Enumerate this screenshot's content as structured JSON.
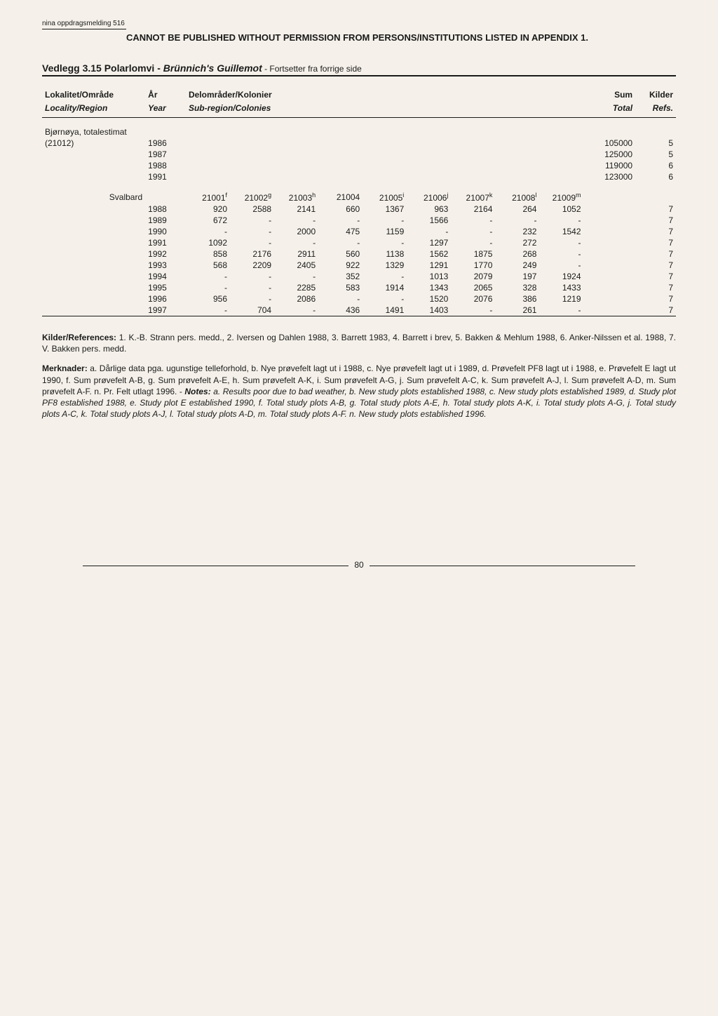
{
  "series_label": "nina oppdragsmelding 516",
  "banner": "CANNOT BE PUBLISHED WITHOUT PERMISSION FROM PERSONS/INSTITUTIONS LISTED IN APPENDIX 1.",
  "section": {
    "number": "Vedlegg 3.15",
    "title_plain": "Polarlomvi -",
    "title_italic": "Brünnich's Guillemot",
    "cont": " - Fortsetter fra forrige side"
  },
  "headers": {
    "row1": [
      "Lokalitet/Område",
      "År",
      "Delområder/Kolonier",
      "Sum",
      "Kilder"
    ],
    "row2": [
      "Locality/Region",
      "Year",
      "Sub-region/Colonies",
      "Total",
      "Refs."
    ]
  },
  "bjornoya": {
    "label": "Bjørnøya, totalestimat",
    "code": "(21012)",
    "rows": [
      {
        "year": "1986",
        "sum": "105000",
        "ref": "5"
      },
      {
        "year": "1987",
        "sum": "125000",
        "ref": "5"
      },
      {
        "year": "1988",
        "sum": "119000",
        "ref": "6"
      },
      {
        "year": "1991",
        "sum": "123000",
        "ref": "6"
      }
    ]
  },
  "svalbard": {
    "label": "Svalbard",
    "cols": [
      "21001",
      "21002",
      "21003",
      "21004",
      "21005",
      "21006",
      "21007",
      "21008",
      "21009"
    ],
    "col_sups": [
      "f",
      "g",
      "h",
      "",
      "i",
      "j",
      "k",
      "l",
      "m"
    ],
    "rows": [
      {
        "year": "1988",
        "c": [
          "920",
          "2588",
          "2141",
          "660",
          "1367",
          "963",
          "2164",
          "264",
          "1052"
        ],
        "ref": "7"
      },
      {
        "year": "1989",
        "c": [
          "672",
          "-",
          "-",
          "-",
          "-",
          "1566",
          "-",
          "-",
          "-"
        ],
        "ref": "7"
      },
      {
        "year": "1990",
        "c": [
          "-",
          "-",
          "2000",
          "475",
          "1159",
          "-",
          "-",
          "232",
          "1542"
        ],
        "ref": "7"
      },
      {
        "year": "1991",
        "c": [
          "1092",
          "-",
          "-",
          "-",
          "-",
          "1297",
          "-",
          "272",
          "-"
        ],
        "ref": "7"
      },
      {
        "year": "1992",
        "c": [
          "858",
          "2176",
          "2911",
          "560",
          "1138",
          "1562",
          "1875",
          "268",
          "-"
        ],
        "ref": "7"
      },
      {
        "year": "1993",
        "c": [
          "568",
          "2209",
          "2405",
          "922",
          "1329",
          "1291",
          "1770",
          "249",
          "-"
        ],
        "ref": "7"
      },
      {
        "year": "1994",
        "c": [
          "-",
          "-",
          "-",
          "352",
          "-",
          "1013",
          "2079",
          "197",
          "1924"
        ],
        "ref": "7"
      },
      {
        "year": "1995",
        "c": [
          "-",
          "-",
          "2285",
          "583",
          "1914",
          "1343",
          "2065",
          "328",
          "1433"
        ],
        "ref": "7"
      },
      {
        "year": "1996",
        "c": [
          "956",
          "-",
          "2086",
          "-",
          "-",
          "1520",
          "2076",
          "386",
          "1219"
        ],
        "ref": "7"
      },
      {
        "year": "1997",
        "c": [
          "-",
          "704",
          "-",
          "436",
          "1491",
          "1403",
          "-",
          "261",
          "-"
        ],
        "ref": "7"
      }
    ]
  },
  "references_label": "Kilder/References:",
  "references_text": " 1. K.-B. Strann pers. medd., 2. Iversen og Dahlen 1988, 3. Barrett 1983, 4. Barrett i brev, 5. Bakken & Mehlum 1988, 6. Anker-Nilssen et al. 1988, 7. V. Bakken pers. medd.",
  "merknader_label": "Merknader:",
  "merknader_text_a": " a. Dårlige data pga. ugunstige telleforhold, b. Nye prøvefelt lagt ut i 1988, c. Nye prøvefelt lagt ut i 1989, d. Prøvefelt PF8 lagt ut i 1988, e. Prøvefelt E lagt ut 1990, f. Sum prøvefelt A-B, g. Sum prøvefelt A-E, h. Sum prøvefelt A-K, i. Sum prøvefelt A-G, j. Sum prøvefelt A-C, k. Sum prøvefelt A-J, l. Sum prøvefelt A-D, m. Sum prøvefelt A-F. n. Pr. Felt utlagt 1996. - ",
  "notes_label": "Notes:",
  "notes_text": " a. Results poor due to bad weather, b. New study plots established 1988, c. New study plots established 1989, d. Study plot PF8 established 1988, e. Study plot E established 1990, f. Total study plots A-B, g. Total study plots A-E, h. Total study plots A-K, i. Total study plots A-G, j. Total study plots A-C, k. Total study plots A-J, l. Total study plots A-D, m. Total study plots A-F. n. New study plots established 1996.",
  "page_number": "80"
}
